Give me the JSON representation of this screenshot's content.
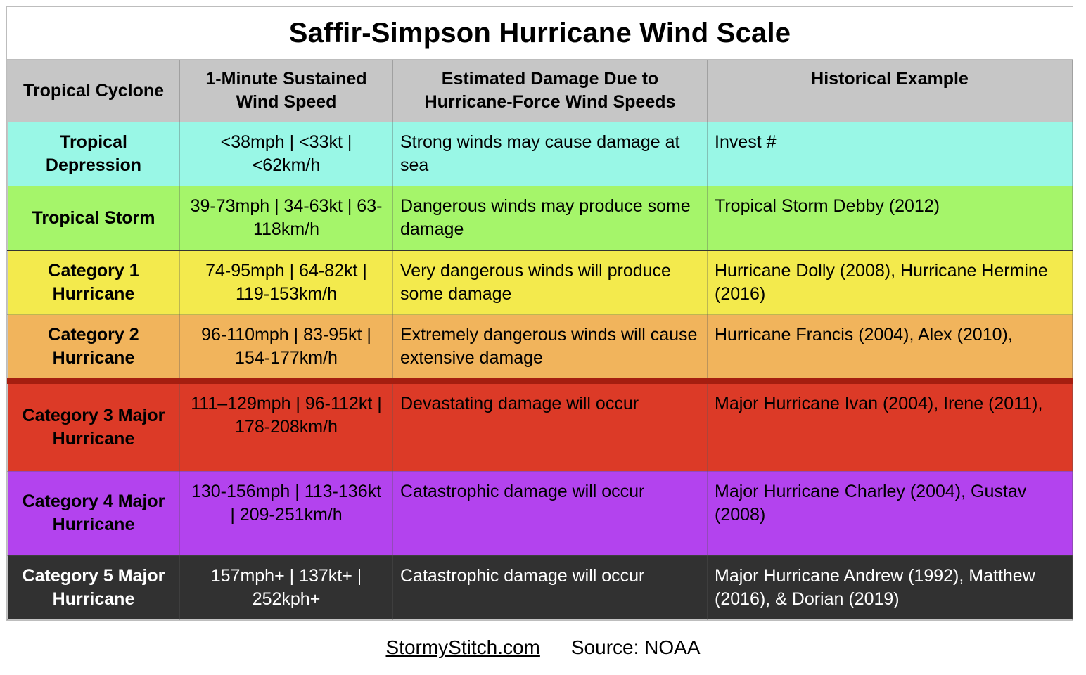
{
  "title": "Saffir-Simpson Hurricane Wind Scale",
  "headers": {
    "col1": "Tropical Cyclone",
    "col2": "1-Minute Sustained Wind Speed",
    "col3": "Estimated Damage Due to Hurricane-Force Wind Speeds",
    "col4": "Historical Example"
  },
  "rows": [
    {
      "category": "Tropical Depression",
      "wind": "<38mph | <33kt | <62km/h",
      "damage": "Strong winds may cause damage at sea",
      "example": "Invest #",
      "color": "#99f7e6"
    },
    {
      "category": "Tropical Storm",
      "wind": "39-73mph | 34-63kt | 63-118km/h",
      "damage": "Dangerous winds may produce some damage",
      "example": "Tropical Storm Debby (2012)",
      "color": "#a5f56a"
    },
    {
      "category": "Category 1 Hurricane",
      "wind": "74-95mph | 64-82kt | 119-153km/h",
      "damage": "Very dangerous winds will produce some damage",
      "example": "Hurricane Dolly (2008), Hurricane Hermine (2016)",
      "color": "#f3ea4d"
    },
    {
      "category": "Category 2 Hurricane",
      "wind": "96-110mph | 83-95kt | 154-177km/h",
      "damage": "Extremely dangerous winds will cause extensive damage",
      "example": "Hurricane Francis (2004), Alex (2010),",
      "color": "#f1b45c"
    },
    {
      "category": "Category 3 Major Hurricane",
      "wind": "111–129mph | 96-112kt | 178-208km/h",
      "damage": "Devastating damage will occur",
      "example": "Major Hurricane Ivan (2004), Irene (2011),",
      "color": "#dc3a27"
    },
    {
      "category": "Category 4 Major Hurricane",
      "wind": "130-156mph | 113-136kt | 209-251km/h",
      "damage": "Catastrophic damage will occur",
      "example": "Major Hurricane Charley (2004), Gustav (2008)",
      "color": "#b343ee"
    },
    {
      "category": "Category 5 Major Hurricane",
      "wind": "157mph+ | 137kt+ | 252kph+",
      "damage": "Catastrophic damage will occur",
      "example": "Major Hurricane Andrew (1992), Matthew (2016), & Dorian (2019)",
      "color": "#313131"
    }
  ],
  "footer": {
    "site": "StormyStitch.com",
    "source": "Source: NOAA"
  }
}
